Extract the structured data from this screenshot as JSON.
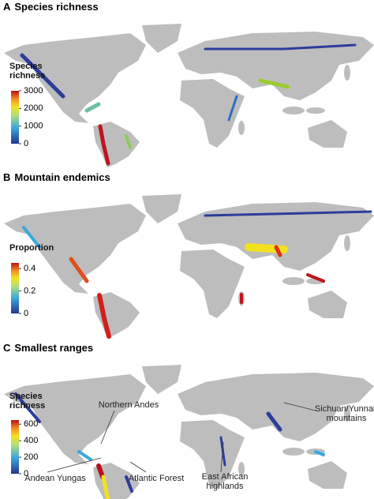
{
  "panels": [
    {
      "letter": "A",
      "title": "Species richness",
      "legend": {
        "title": "Species richness",
        "lim": [
          0,
          3000
        ],
        "ticks": [
          0,
          1000,
          2000,
          3000
        ]
      }
    },
    {
      "letter": "B",
      "title": "Mountain endemics",
      "legend": {
        "title": "Proportion",
        "lim": [
          0,
          0.45
        ],
        "ticks": [
          0,
          0.2,
          0.4
        ]
      }
    },
    {
      "letter": "C",
      "title": "Smallest ranges",
      "legend": {
        "title": "Species richness",
        "lim": [
          0,
          650
        ],
        "ticks": [
          0,
          200,
          400,
          600
        ]
      },
      "annotations": [
        "Northern Andes",
        "Andean Yungas",
        "Atlantic Forest",
        "East African highlands",
        "Sichuan/Yunnan mountains"
      ]
    }
  ]
}
